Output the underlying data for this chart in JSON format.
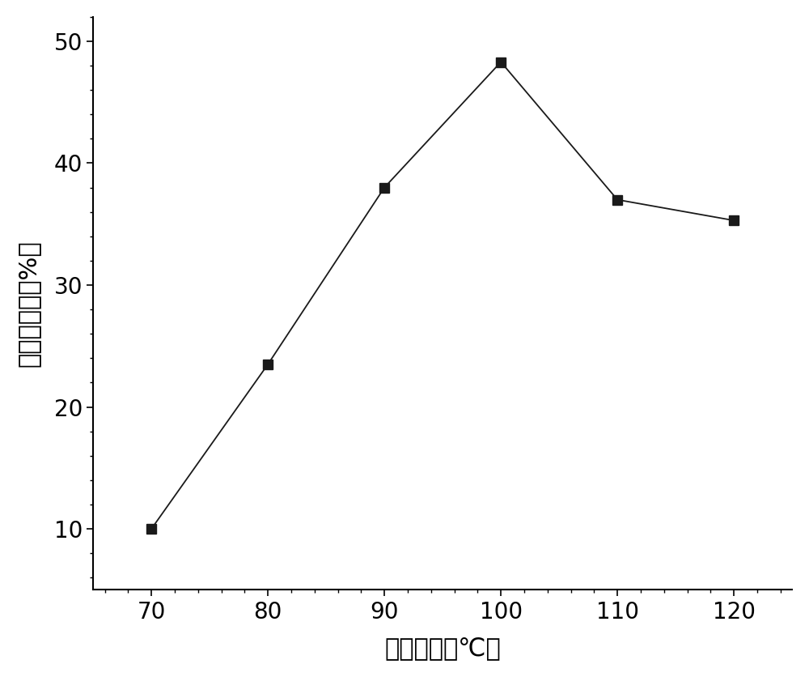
{
  "x": [
    70,
    80,
    90,
    100,
    110,
    120
  ],
  "y": [
    10.0,
    23.5,
    38.0,
    48.3,
    37.0,
    35.3
  ],
  "xlabel": "反应温度（℃）",
  "ylabel": "马来酸产率（%）",
  "xlim": [
    65,
    125
  ],
  "ylim": [
    5,
    52
  ],
  "xticks": [
    70,
    80,
    90,
    100,
    110,
    120
  ],
  "yticks": [
    10,
    20,
    30,
    40,
    50
  ],
  "line_color": "#1a1a1a",
  "marker": "s",
  "marker_color": "#1a1a1a",
  "marker_size": 8,
  "line_width": 1.3,
  "background_color": "#ffffff",
  "xlabel_fontsize": 22,
  "ylabel_fontsize": 22,
  "tick_fontsize": 20,
  "fig_width": 10.0,
  "fig_height": 8.36
}
